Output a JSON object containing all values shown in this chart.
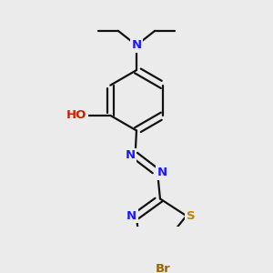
{
  "bg": "#ebebeb",
  "figsize": [
    3.0,
    3.0
  ],
  "dpi": 100,
  "bond_color": "#111111",
  "bond_lw": 1.6,
  "doff": 0.013,
  "atom_r": 0.022,
  "colors": {
    "N": "#1a1aff",
    "O": "#cc2200",
    "S": "#b8860b",
    "Br": "#996600",
    "C": "#111111",
    "HO": "#cc2200"
  }
}
